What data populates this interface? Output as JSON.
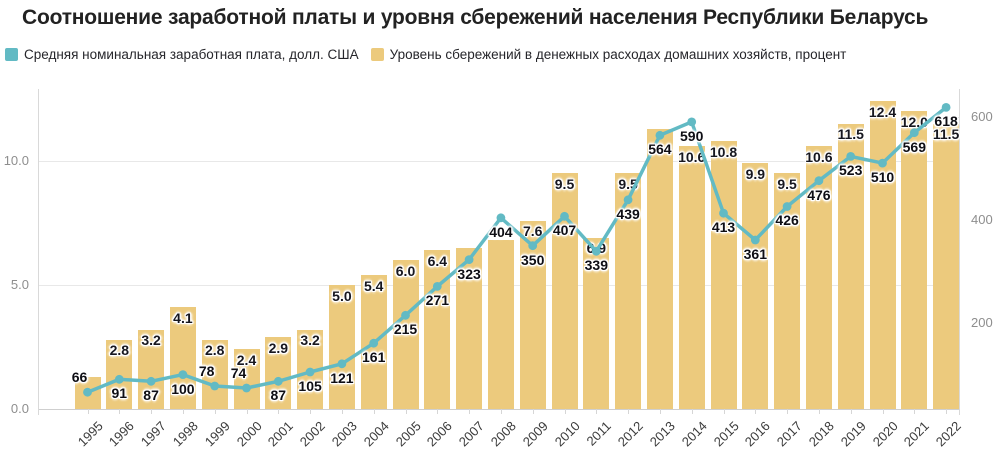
{
  "title": "Соотношение заработной платы и уровня сбережений населения Республики Беларусь",
  "legend": {
    "wage": {
      "label": "Средняя номинальная заработная плата, долл. США",
      "color": "#62bac4"
    },
    "savings": {
      "label": "Уровень сбережений в денежных расходах домашних хозяйств, процент",
      "color": "#ecca7d"
    }
  },
  "axes": {
    "left_ticks": [
      {
        "label": "0.0",
        "value": 0
      },
      {
        "label": "5.0",
        "value": 5
      },
      {
        "label": "10.0",
        "value": 10
      }
    ],
    "right_ticks": [
      {
        "label": "200",
        "value": 200
      },
      {
        "label": "400",
        "value": 400
      },
      {
        "label": "600",
        "value": 600
      }
    ]
  },
  "chart_data": {
    "type": "bar",
    "subtype": "bar-and-line-combo",
    "x": [
      1995,
      1996,
      1997,
      1998,
      1999,
      2000,
      2001,
      2002,
      2003,
      2004,
      2005,
      2006,
      2007,
      2008,
      2009,
      2010,
      2011,
      2012,
      2013,
      2014,
      2015,
      2016,
      2017,
      2018,
      2019,
      2020,
      2021,
      2022
    ],
    "series": [
      {
        "name": "Средняя номинальная заработная плата, долл. США",
        "type": "line",
        "axis": "right",
        "color": "#62bac4",
        "values": [
          66,
          91,
          87,
          100,
          78,
          74,
          87,
          105,
          121,
          161,
          215,
          271,
          323,
          404,
          350,
          407,
          339,
          439,
          564,
          590,
          413,
          361,
          426,
          476,
          523,
          510,
          569,
          618
        ]
      },
      {
        "name": "Уровень сбережений в денежных расходах домашних хозяйств, процент",
        "type": "bar",
        "axis": "left",
        "color": "#ecca7d",
        "values": [
          1.3,
          2.8,
          3.2,
          4.1,
          2.8,
          2.4,
          2.9,
          3.2,
          5.0,
          5.4,
          6.0,
          6.4,
          6.5,
          6.8,
          7.6,
          9.5,
          6.9,
          9.5,
          11.3,
          10.6,
          10.8,
          9.9,
          9.5,
          10.6,
          11.5,
          12.4,
          12.0,
          11.5
        ]
      }
    ],
    "title": "Соотношение заработной платы и уровня сбережений населения Республики Беларусь",
    "xlabel": "",
    "ylabel_left": "",
    "ylabel_right": "",
    "ylim_left": [
      0,
      12.9
    ],
    "ylim_right": [
      33,
      654
    ],
    "grid": "horizontal",
    "legend_position": "top",
    "bar_labels_hidden_years": [
      1995,
      2007,
      2008,
      2013
    ],
    "wage_labels_above_years": [
      1995,
      1999,
      2000
    ]
  }
}
